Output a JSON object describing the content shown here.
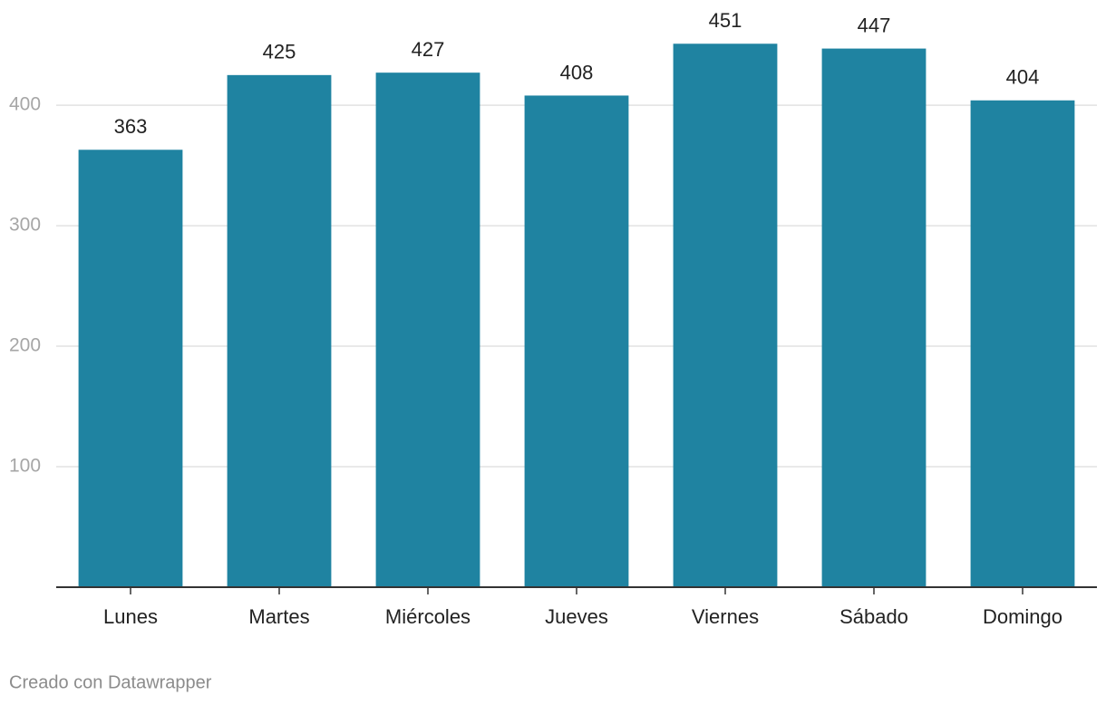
{
  "chart_data": {
    "type": "bar",
    "categories": [
      "Lunes",
      "Martes",
      "Miércoles",
      "Jueves",
      "Viernes",
      "Sábado",
      "Domingo"
    ],
    "values": [
      363,
      425,
      427,
      408,
      451,
      447,
      404
    ],
    "color": "#1f83a1",
    "ylim": [
      0,
      470
    ],
    "yticks": [
      100,
      200,
      300,
      400
    ],
    "grid": true,
    "credit": "Creado con Datawrapper"
  }
}
